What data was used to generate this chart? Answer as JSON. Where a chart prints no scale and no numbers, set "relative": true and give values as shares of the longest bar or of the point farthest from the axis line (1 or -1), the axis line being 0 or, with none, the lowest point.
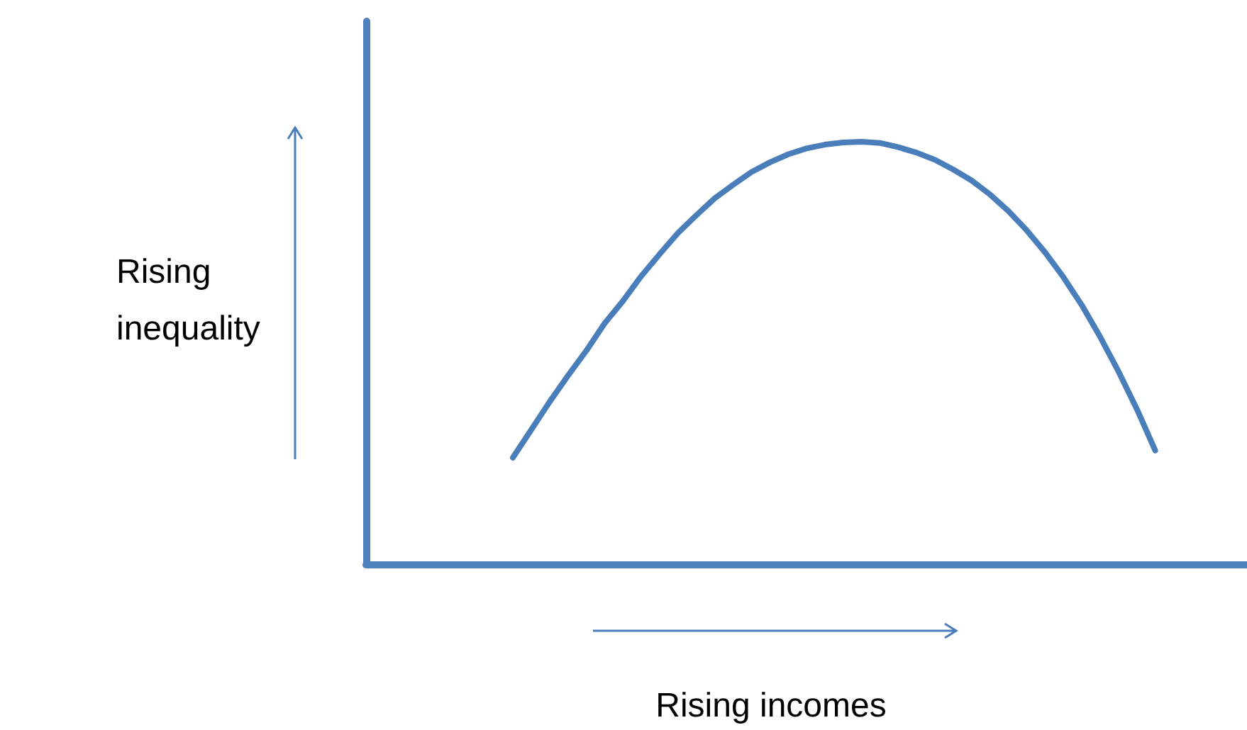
{
  "chart_data": {
    "type": "line",
    "relative": true,
    "xlabel": "Rising incomes",
    "ylabel": "Rising inequality",
    "categories": [
      null,
      null,
      null,
      null,
      null,
      null,
      null,
      null,
      null,
      null,
      null,
      null,
      null,
      null,
      null,
      null,
      null,
      null,
      null,
      null,
      null,
      null,
      null,
      null,
      null,
      null,
      null,
      null,
      null,
      null,
      null,
      null,
      null,
      null,
      null,
      null,
      null,
      null,
      null,
      null,
      null,
      null,
      null,
      null,
      null,
      null,
      null,
      null,
      null
    ],
    "series": [
      {
        "color": "#4a7ebb",
        "values": [
          null,
          null,
          null,
          null,
          null,
          null,
          null,
          null,
          0.252,
          0.318,
          0.384,
          0.446,
          0.505,
          0.57,
          0.623,
          0.682,
          0.734,
          0.784,
          0.826,
          0.866,
          0.898,
          0.928,
          0.951,
          0.97,
          0.984,
          0.993,
          0.998,
          1,
          0.997,
          0.987,
          0.974,
          0.957,
          0.934,
          0.908,
          0.875,
          0.836,
          0.79,
          0.738,
          0.679,
          0.613,
          0.538,
          0.456,
          0.367,
          0.269,
          null,
          null,
          null,
          null,
          null
        ]
      }
    ],
    "marker": "none",
    "line_style": "solid",
    "grid": false
  }
}
